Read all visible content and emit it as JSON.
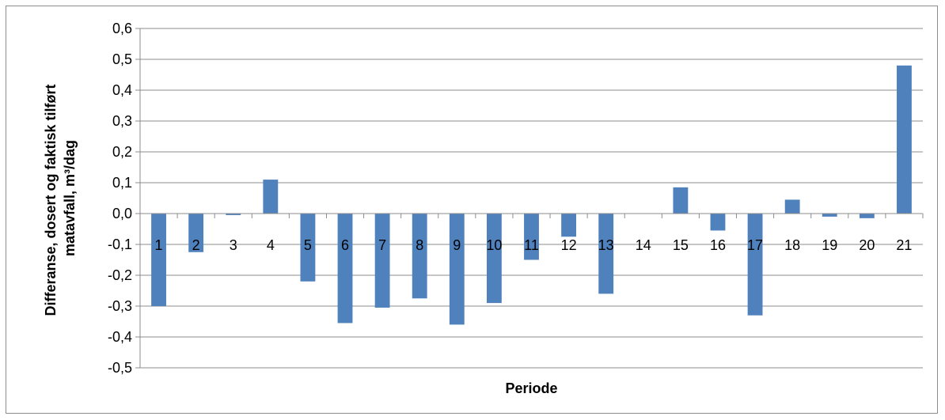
{
  "chart_data": {
    "type": "bar",
    "xlabel": "Periode",
    "ylabel_lines": [
      "Differanse, dosert og faktisk tilført",
      "matavfall, m³/dag"
    ],
    "ylim": [
      -0.5,
      0.6
    ],
    "y_ticks": [
      "0,6",
      "0,5",
      "0,4",
      "0,3",
      "0,2",
      "0,1",
      "0,0",
      "-0,1",
      "-0,2",
      "-0,3",
      "-0,4",
      "-0,5"
    ],
    "categories": [
      "1",
      "2",
      "3",
      "4",
      "5",
      "6",
      "7",
      "8",
      "9",
      "10",
      "11",
      "12",
      "13",
      "14",
      "15",
      "16",
      "17",
      "18",
      "19",
      "20",
      "21"
    ],
    "values": [
      -0.3,
      -0.125,
      -0.005,
      0.11,
      -0.22,
      -0.355,
      -0.305,
      -0.275,
      -0.36,
      -0.29,
      -0.15,
      -0.075,
      -0.26,
      0.0,
      0.085,
      -0.055,
      -0.33,
      0.045,
      -0.01,
      -0.015,
      0.48
    ],
    "bar_color": "#4f81bd",
    "grid": true
  }
}
